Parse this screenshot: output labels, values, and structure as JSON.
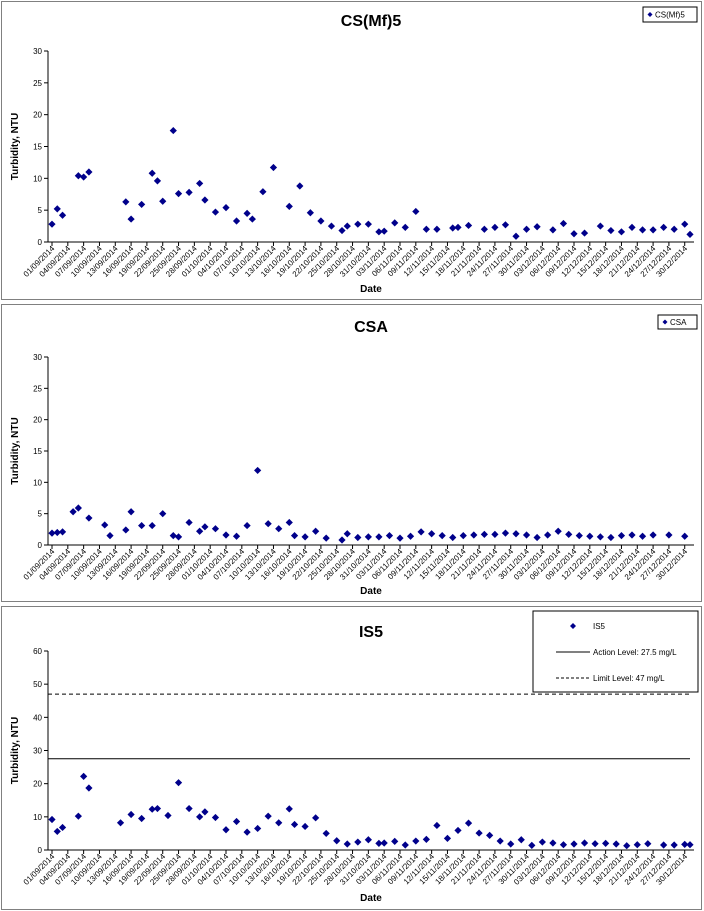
{
  "chart_data": [
    {
      "type": "scatter",
      "title": "CS(Mf)5",
      "xlabel": "Date",
      "ylabel": "Turbidity, NTU",
      "ylim": [
        0,
        30
      ],
      "yticks": [
        0,
        5,
        10,
        15,
        20,
        25,
        30
      ],
      "xlim": [
        "01/09/2014",
        "31/12/2014"
      ],
      "xticks": [
        "01/09/2014",
        "04/09/2014",
        "07/09/2014",
        "10/09/2014",
        "13/09/2014",
        "16/09/2014",
        "19/09/2014",
        "22/09/2014",
        "25/09/2014",
        "28/09/2014",
        "01/10/2014",
        "04/10/2014",
        "07/10/2014",
        "10/10/2014",
        "13/10/2014",
        "16/10/2014",
        "19/10/2014",
        "22/10/2014",
        "25/10/2014",
        "28/10/2014",
        "31/10/2014",
        "03/11/2014",
        "06/11/2014",
        "09/11/2014",
        "12/11/2014",
        "15/11/2014",
        "18/11/2014",
        "21/11/2014",
        "24/11/2014",
        "27/11/2014",
        "30/11/2014",
        "03/12/2014",
        "06/12/2014",
        "09/12/2014",
        "12/12/2014",
        "15/12/2014",
        "18/12/2014",
        "21/12/2014",
        "24/12/2014",
        "27/12/2014",
        "30/12/2014"
      ],
      "legend_position": "top-right",
      "grid": false,
      "series": [
        {
          "name": "CS(Mf)5",
          "color": "#00008B",
          "marker": "diamond",
          "x": [
            "01/09/2014",
            "02/09/2014",
            "03/09/2014",
            "06/09/2014",
            "07/09/2014",
            "08/09/2014",
            "15/09/2014",
            "16/09/2014",
            "18/09/2014",
            "20/09/2014",
            "21/09/2014",
            "22/09/2014",
            "24/09/2014",
            "25/09/2014",
            "27/09/2014",
            "29/09/2014",
            "30/09/2014",
            "02/10/2014",
            "04/10/2014",
            "06/10/2014",
            "08/10/2014",
            "09/10/2014",
            "11/10/2014",
            "13/10/2014",
            "16/10/2014",
            "18/10/2014",
            "20/10/2014",
            "22/10/2014",
            "24/10/2014",
            "26/10/2014",
            "27/10/2014",
            "29/10/2014",
            "31/10/2014",
            "02/11/2014",
            "03/11/2014",
            "05/11/2014",
            "07/11/2014",
            "09/11/2014",
            "11/11/2014",
            "13/11/2014",
            "16/11/2014",
            "17/11/2014",
            "19/11/2014",
            "22/11/2014",
            "24/11/2014",
            "26/11/2014",
            "28/11/2014",
            "30/11/2014",
            "02/12/2014",
            "05/12/2014",
            "07/12/2014",
            "09/12/2014",
            "11/12/2014",
            "14/12/2014",
            "16/12/2014",
            "18/12/2014",
            "20/12/2014",
            "22/12/2014",
            "24/12/2014",
            "26/12/2014",
            "28/12/2014",
            "30/12/2014",
            "31/12/2014"
          ],
          "y": [
            2.8,
            5.2,
            4.2,
            10.4,
            10.2,
            11.0,
            6.3,
            3.6,
            5.9,
            10.8,
            9.6,
            6.4,
            17.5,
            7.6,
            7.8,
            9.2,
            6.6,
            4.7,
            5.4,
            3.3,
            4.5,
            3.6,
            7.9,
            11.7,
            5.6,
            8.8,
            4.6,
            3.3,
            2.5,
            1.8,
            2.5,
            2.8,
            2.8,
            1.6,
            1.7,
            3.0,
            2.3,
            4.8,
            2.0,
            2.0,
            2.2,
            2.3,
            2.6,
            2.0,
            2.3,
            2.7,
            0.9,
            2.0,
            2.4,
            1.9,
            2.9,
            1.3,
            1.4,
            2.5,
            1.8,
            1.6,
            2.3,
            1.9,
            1.9,
            2.3,
            2.0,
            2.8,
            1.2
          ]
        }
      ]
    },
    {
      "type": "scatter",
      "title": "CSA",
      "xlabel": "Date",
      "ylabel": "Turbidity, NTU",
      "ylim": [
        0,
        30
      ],
      "yticks": [
        0,
        5,
        10,
        15,
        20,
        25,
        30
      ],
      "xlim": [
        "01/09/2014",
        "31/12/2014"
      ],
      "xticks": [
        "01/09/2014",
        "04/09/2014",
        "07/09/2014",
        "10/09/2014",
        "13/09/2014",
        "16/09/2014",
        "19/09/2014",
        "22/09/2014",
        "25/09/2014",
        "28/09/2014",
        "01/10/2014",
        "04/10/2014",
        "07/10/2014",
        "10/10/2014",
        "13/10/2014",
        "16/10/2014",
        "19/10/2014",
        "22/10/2014",
        "25/10/2014",
        "28/10/2014",
        "31/10/2014",
        "03/11/2014",
        "06/11/2014",
        "09/11/2014",
        "12/11/2014",
        "15/11/2014",
        "18/11/2014",
        "21/11/2014",
        "24/11/2014",
        "27/11/2014",
        "30/11/2014",
        "03/12/2014",
        "06/12/2014",
        "09/12/2014",
        "12/12/2014",
        "15/12/2014",
        "18/12/2014",
        "21/12/2014",
        "24/12/2014",
        "27/12/2014",
        "30/12/2014"
      ],
      "legend_position": "top-right",
      "grid": false,
      "series": [
        {
          "name": "CSA",
          "color": "#00008B",
          "marker": "diamond",
          "x": [
            "01/09/2014",
            "02/09/2014",
            "03/09/2014",
            "05/09/2014",
            "06/09/2014",
            "08/09/2014",
            "11/09/2014",
            "12/09/2014",
            "15/09/2014",
            "16/09/2014",
            "18/09/2014",
            "20/09/2014",
            "22/09/2014",
            "24/09/2014",
            "25/09/2014",
            "27/09/2014",
            "29/09/2014",
            "30/09/2014",
            "02/10/2014",
            "04/10/2014",
            "06/10/2014",
            "08/10/2014",
            "10/10/2014",
            "12/10/2014",
            "14/10/2014",
            "16/10/2014",
            "17/10/2014",
            "19/10/2014",
            "21/10/2014",
            "23/10/2014",
            "26/10/2014",
            "27/10/2014",
            "29/10/2014",
            "31/10/2014",
            "02/11/2014",
            "04/11/2014",
            "06/11/2014",
            "08/11/2014",
            "10/11/2014",
            "12/11/2014",
            "14/11/2014",
            "16/11/2014",
            "18/11/2014",
            "20/11/2014",
            "22/11/2014",
            "24/11/2014",
            "26/11/2014",
            "28/11/2014",
            "30/11/2014",
            "02/12/2014",
            "04/12/2014",
            "06/12/2014",
            "08/12/2014",
            "10/12/2014",
            "12/12/2014",
            "14/12/2014",
            "16/12/2014",
            "18/12/2014",
            "20/12/2014",
            "22/12/2014",
            "24/12/2014",
            "27/12/2014",
            "30/12/2014"
          ],
          "y": [
            1.9,
            2.0,
            2.1,
            5.3,
            5.9,
            4.3,
            3.2,
            1.5,
            2.4,
            5.3,
            3.1,
            3.1,
            5.0,
            1.5,
            1.3,
            3.6,
            2.2,
            2.9,
            2.6,
            1.6,
            1.4,
            3.1,
            11.9,
            3.4,
            2.6,
            3.6,
            1.5,
            1.3,
            2.2,
            1.1,
            0.8,
            1.8,
            1.2,
            1.3,
            1.3,
            1.5,
            1.1,
            1.4,
            2.1,
            1.8,
            1.5,
            1.2,
            1.5,
            1.6,
            1.7,
            1.7,
            1.9,
            1.8,
            1.6,
            1.2,
            1.6,
            2.2,
            1.7,
            1.5,
            1.4,
            1.3,
            1.2,
            1.5,
            1.6,
            1.4,
            1.6,
            1.6,
            1.4
          ]
        }
      ]
    },
    {
      "type": "scatter",
      "title": "IS5",
      "xlabel": "Date",
      "ylabel": "Turbidity, NTU",
      "ylim": [
        0,
        60
      ],
      "yticks": [
        0,
        10,
        20,
        30,
        40,
        50,
        60
      ],
      "xlim": [
        "01/09/2014",
        "31/12/2014"
      ],
      "xticks": [
        "01/09/2014",
        "04/09/2014",
        "07/09/2014",
        "10/09/2014",
        "13/09/2014",
        "16/09/2014",
        "19/09/2014",
        "22/09/2014",
        "25/09/2014",
        "28/09/2014",
        "01/10/2014",
        "04/10/2014",
        "07/10/2014",
        "10/10/2014",
        "13/10/2014",
        "16/10/2014",
        "19/10/2014",
        "22/10/2014",
        "25/10/2014",
        "28/10/2014",
        "31/10/2014",
        "03/11/2014",
        "06/11/2014",
        "09/11/2014",
        "12/11/2014",
        "15/11/2014",
        "18/11/2014",
        "21/11/2014",
        "24/11/2014",
        "27/11/2014",
        "30/11/2014",
        "03/12/2014",
        "06/12/2014",
        "09/12/2014",
        "12/12/2014",
        "15/12/2014",
        "18/12/2014",
        "21/12/2014",
        "24/12/2014",
        "27/12/2014",
        "30/12/2014"
      ],
      "legend_position": "top-right",
      "grid": false,
      "reference_lines": [
        {
          "label": "Action Level: 27.5 mg/L",
          "value": 27.5,
          "style": "solid"
        },
        {
          "label": "Limit Level: 47 mg/L",
          "value": 47,
          "style": "dashed"
        }
      ],
      "series": [
        {
          "name": "IS5",
          "color": "#00008B",
          "marker": "diamond",
          "x": [
            "01/09/2014",
            "02/09/2014",
            "03/09/2014",
            "06/09/2014",
            "07/09/2014",
            "08/09/2014",
            "14/09/2014",
            "16/09/2014",
            "18/09/2014",
            "20/09/2014",
            "21/09/2014",
            "23/09/2014",
            "25/09/2014",
            "27/09/2014",
            "29/09/2014",
            "30/09/2014",
            "02/10/2014",
            "04/10/2014",
            "06/10/2014",
            "08/10/2014",
            "10/10/2014",
            "12/10/2014",
            "14/10/2014",
            "16/10/2014",
            "17/10/2014",
            "19/10/2014",
            "21/10/2014",
            "23/10/2014",
            "25/10/2014",
            "27/10/2014",
            "29/10/2014",
            "31/10/2014",
            "02/11/2014",
            "03/11/2014",
            "05/11/2014",
            "07/11/2014",
            "09/11/2014",
            "11/11/2014",
            "13/11/2014",
            "15/11/2014",
            "17/11/2014",
            "19/11/2014",
            "21/11/2014",
            "23/11/2014",
            "25/11/2014",
            "27/11/2014",
            "29/11/2014",
            "01/12/2014",
            "03/12/2014",
            "05/12/2014",
            "07/12/2014",
            "09/12/2014",
            "11/12/2014",
            "13/12/2014",
            "15/12/2014",
            "17/12/2014",
            "19/12/2014",
            "21/12/2014",
            "23/12/2014",
            "26/12/2014",
            "28/12/2014",
            "30/12/2014",
            "31/12/2014"
          ],
          "y": [
            9.2,
            5.6,
            6.8,
            10.2,
            22.2,
            18.7,
            8.2,
            10.7,
            9.5,
            12.3,
            12.5,
            10.4,
            20.3,
            12.5,
            10.0,
            11.5,
            9.8,
            6.1,
            8.6,
            5.4,
            6.5,
            10.2,
            8.2,
            12.4,
            7.7,
            7.1,
            9.7,
            5.0,
            2.8,
            1.8,
            2.4,
            3.1,
            2.0,
            2.1,
            2.6,
            1.5,
            2.7,
            3.2,
            7.4,
            3.5,
            5.9,
            8.1,
            5.1,
            4.4,
            2.7,
            1.8,
            3.1,
            1.4,
            2.4,
            2.1,
            1.6,
            1.8,
            2.1,
            1.9,
            2.0,
            1.8,
            1.3,
            1.6,
            1.9,
            1.5,
            1.5,
            1.7,
            1.6
          ]
        }
      ]
    }
  ]
}
